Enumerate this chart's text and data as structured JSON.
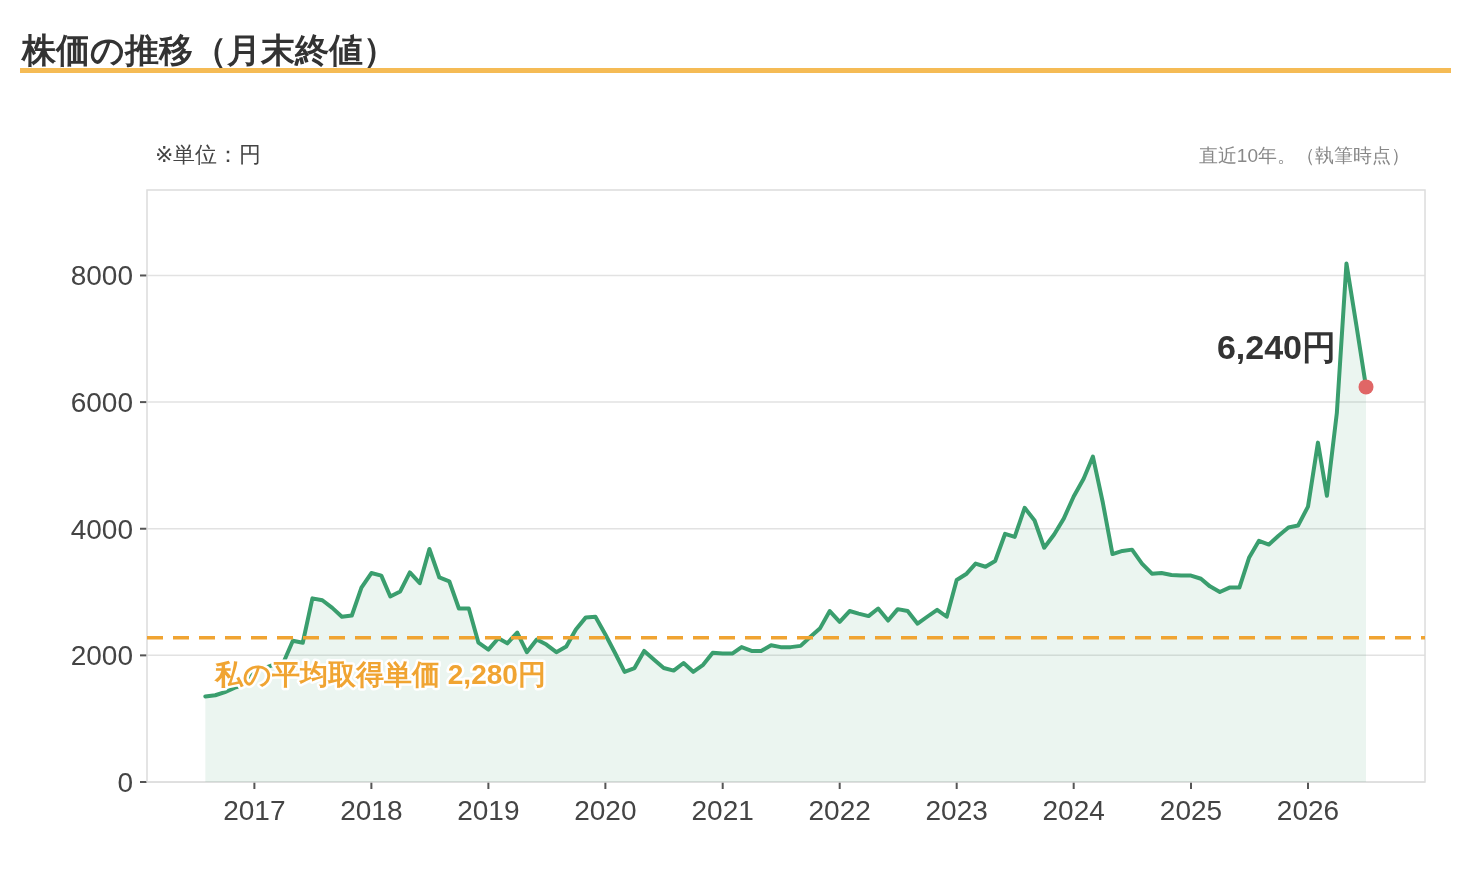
{
  "chart_data": {
    "type": "area",
    "title": "株価の推移（月末終値）",
    "annotations": [
      "※単位：円",
      "直近10年。（執筆時点）",
      {
        "text": "6,240円",
        "x": "2026-07",
        "y": 6240
      }
    ],
    "x": [
      "2016-08",
      "2016-09",
      "2016-10",
      "2016-11",
      "2016-12",
      "2017-01",
      "2017-02",
      "2017-03",
      "2017-04",
      "2017-05",
      "2017-06",
      "2017-07",
      "2017-08",
      "2017-09",
      "2017-10",
      "2017-11",
      "2017-12",
      "2018-01",
      "2018-02",
      "2018-03",
      "2018-04",
      "2018-05",
      "2018-06",
      "2018-07",
      "2018-08",
      "2018-09",
      "2018-10",
      "2018-11",
      "2018-12",
      "2019-01",
      "2019-02",
      "2019-03",
      "2019-04",
      "2019-05",
      "2019-06",
      "2019-07",
      "2019-08",
      "2019-09",
      "2019-10",
      "2019-11",
      "2019-12",
      "2020-01",
      "2020-02",
      "2020-03",
      "2020-04",
      "2020-05",
      "2020-06",
      "2020-07",
      "2020-08",
      "2020-09",
      "2020-10",
      "2020-11",
      "2020-12",
      "2021-01",
      "2021-02",
      "2021-03",
      "2021-04",
      "2021-05",
      "2021-06",
      "2021-07",
      "2021-08",
      "2021-09",
      "2021-10",
      "2021-11",
      "2021-12",
      "2022-01",
      "2022-02",
      "2022-03",
      "2022-04",
      "2022-05",
      "2022-06",
      "2022-07",
      "2022-08",
      "2022-09",
      "2022-10",
      "2022-11",
      "2022-12",
      "2023-01",
      "2023-02",
      "2023-03",
      "2023-04",
      "2023-05",
      "2023-06",
      "2023-07",
      "2023-08",
      "2023-09",
      "2023-10",
      "2023-11",
      "2023-12",
      "2024-01",
      "2024-02",
      "2024-03",
      "2024-04",
      "2024-05",
      "2024-06",
      "2024-07",
      "2024-08",
      "2024-09",
      "2024-10",
      "2024-11",
      "2024-12",
      "2025-01",
      "2025-02",
      "2025-03",
      "2025-04",
      "2025-05",
      "2025-06",
      "2025-07",
      "2025-08",
      "2025-09",
      "2025-10",
      "2025-11",
      "2025-12",
      "2026-01",
      "2026-02",
      "2026-03",
      "2026-04",
      "2026-05",
      "2026-06",
      "2026-07"
    ],
    "series": [
      {
        "color": "#3a9e6e",
        "values": [
          1350,
          1370,
          1420,
          1490,
          1530,
          1780,
          1800,
          1850,
          1880,
          2230,
          2200,
          2900,
          2870,
          2750,
          2610,
          2630,
          3070,
          3300,
          3260,
          2930,
          3010,
          3310,
          3140,
          3680,
          3230,
          3170,
          2740,
          2740,
          2200,
          2090,
          2270,
          2190,
          2360,
          2050,
          2250,
          2170,
          2050,
          2140,
          2410,
          2600,
          2610,
          2330,
          2030,
          1740,
          1800,
          2070,
          1930,
          1800,
          1760,
          1880,
          1740,
          1850,
          2040,
          2030,
          2030,
          2130,
          2070,
          2070,
          2160,
          2130,
          2130,
          2150,
          2290,
          2430,
          2700,
          2530,
          2700,
          2660,
          2620,
          2740,
          2550,
          2730,
          2700,
          2500,
          2610,
          2720,
          2610,
          3190,
          3290,
          3450,
          3400,
          3490,
          3920,
          3870,
          4330,
          4130,
          3700,
          3910,
          4160,
          4510,
          4790,
          5140,
          4410,
          3600,
          3650,
          3670,
          3450,
          3290,
          3300,
          3270,
          3260,
          3260,
          3210,
          3090,
          3000,
          3070,
          3070,
          3540,
          3810,
          3750,
          3890,
          4020,
          4050,
          4350,
          5360,
          4520,
          5830,
          8190,
          7210,
          6240
        ]
      },
      {
        "type": "scatter",
        "color": "#e06666",
        "x": [
          "2026-07"
        ],
        "values": [
          6240
        ]
      }
    ],
    "xlim": [
      "2016-02",
      "2027-01"
    ],
    "xticks": [
      {
        "value": "2017",
        "label": "2017"
      },
      {
        "value": "2018",
        "label": "2018"
      },
      {
        "value": "2019",
        "label": "2019"
      },
      {
        "value": "2020",
        "label": "2020"
      },
      {
        "value": "2021",
        "label": "2021"
      },
      {
        "value": "2022",
        "label": "2022"
      },
      {
        "value": "2023",
        "label": "2023"
      },
      {
        "value": "2024",
        "label": "2024"
      },
      {
        "value": "2025",
        "label": "2025"
      },
      {
        "value": "2026",
        "label": "2026"
      }
    ],
    "ylim": [
      0,
      9350
    ],
    "yticks": [
      0,
      2000,
      4000,
      6000,
      8000
    ],
    "grid": "y",
    "ref_lines": [
      {
        "axis": "y",
        "value": 2280,
        "label": "私の平均取得単価 2,280円",
        "color": "#f0a432",
        "line_style": "dashed"
      }
    ]
  }
}
